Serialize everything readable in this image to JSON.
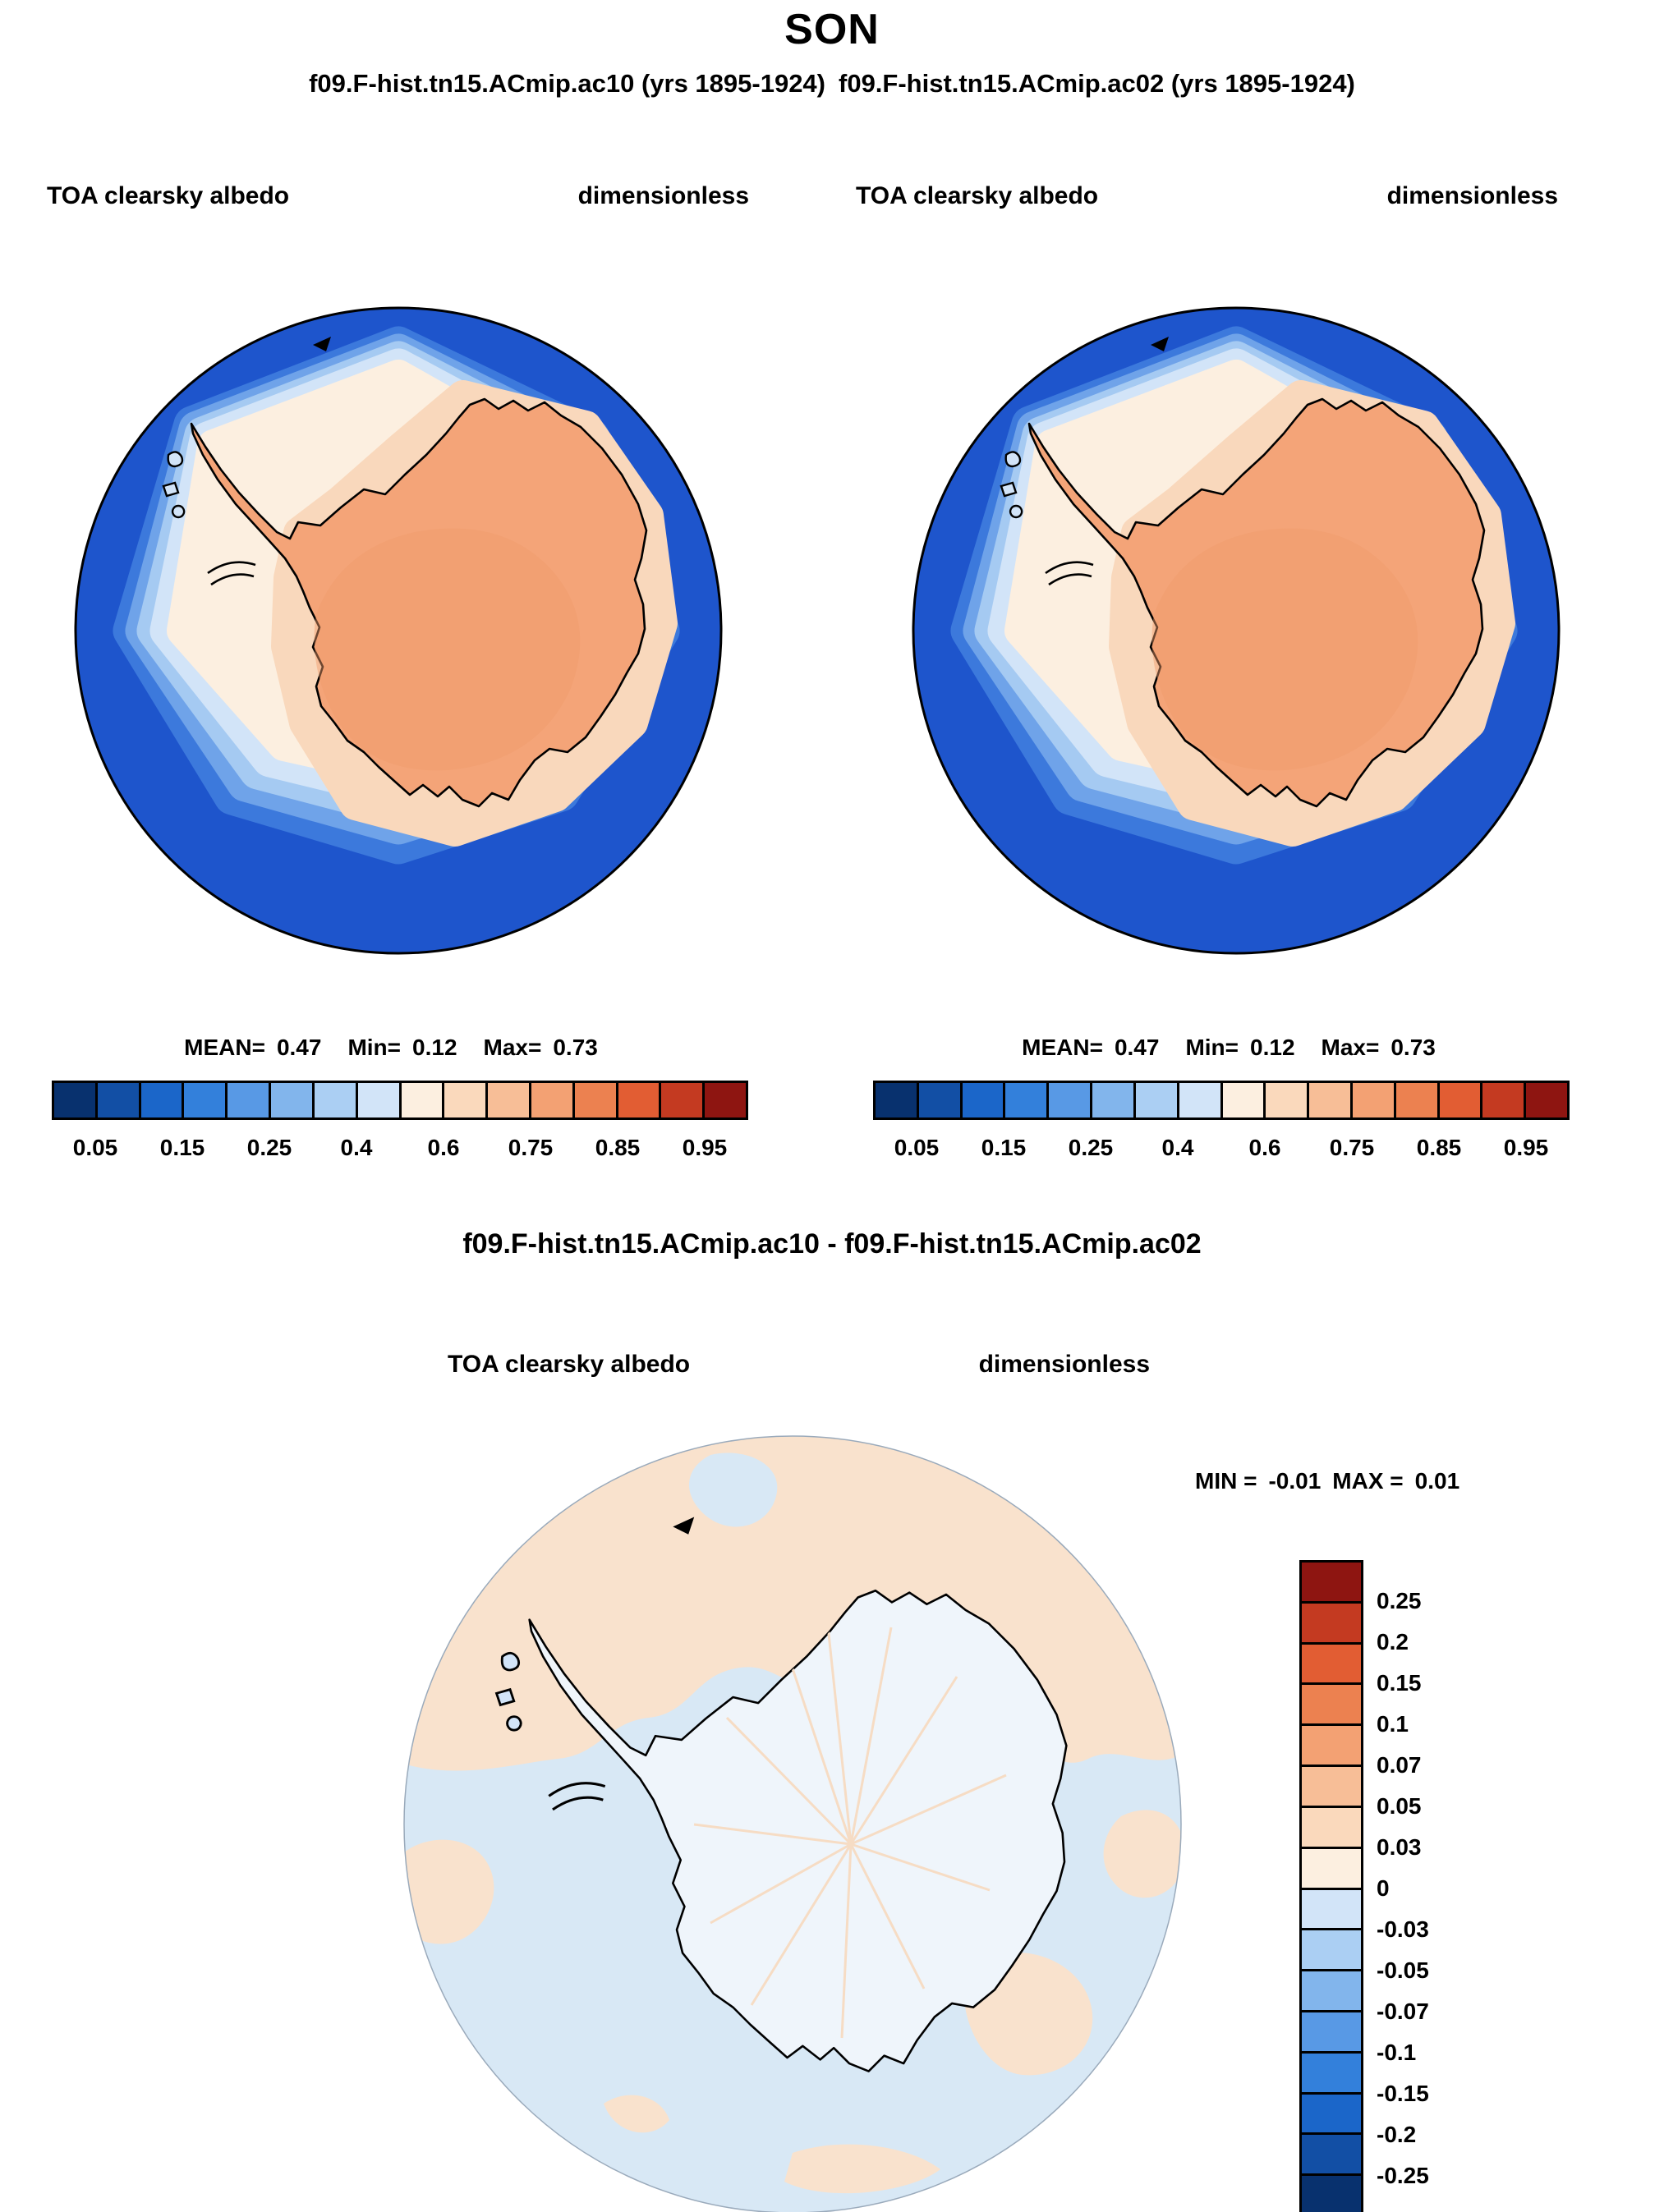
{
  "title": "SON",
  "panels": {
    "left": {
      "run_title": "f09.F-hist.tn15.ACmip.ac10 (yrs 1895-1924)",
      "field": "TOA clearsky albedo",
      "units": "dimensionless",
      "mean_label": "MEAN=",
      "mean": "0.47",
      "min_label": "Min=",
      "min": "0.12",
      "max_label": "Max=",
      "max": "0.73"
    },
    "right": {
      "run_title": "f09.F-hist.tn15.ACmip.ac02 (yrs 1895-1924)",
      "field": "TOA clearsky albedo",
      "units": "dimensionless",
      "mean_label": "MEAN=",
      "mean": "0.47",
      "min_label": "Min=",
      "min": "0.12",
      "max_label": "Max=",
      "max": "0.73"
    }
  },
  "colorbar": {
    "ticks": [
      "0.05",
      "0.15",
      "0.25",
      "0.4",
      "0.6",
      "0.75",
      "0.85",
      "0.95"
    ],
    "colors": [
      "#08316E",
      "#124FA5",
      "#1B66C9",
      "#3380DB",
      "#5899E5",
      "#82B5EC",
      "#ABCFF3",
      "#D2E4F8",
      "#FCEFE0",
      "#FAD9BC",
      "#F7BE97",
      "#F3A173",
      "#EC8150",
      "#E25D33",
      "#C43A21",
      "#8E1511"
    ]
  },
  "diff": {
    "title": "f09.F-hist.tn15.ACmip.ac10 - f09.F-hist.tn15.ACmip.ac02",
    "field": "TOA clearsky albedo",
    "units": "dimensionless",
    "min_label": "MIN =",
    "min": "-0.01",
    "max_label": "MAX =",
    "max": "0.01",
    "colorbar": {
      "ticks": [
        "0.25",
        "0.2",
        "0.15",
        "0.1",
        "0.07",
        "0.05",
        "0.03",
        "0",
        "-0.03",
        "-0.05",
        "-0.07",
        "-0.1",
        "-0.15",
        "-0.2",
        "-0.25"
      ],
      "colors": [
        "#8E1511",
        "#C43A21",
        "#E25D33",
        "#EC8150",
        "#F3A173",
        "#F7BE97",
        "#FAD9BC",
        "#FCEFE0",
        "#D2E4F8",
        "#ABCFF3",
        "#82B5EC",
        "#5899E5",
        "#3380DB",
        "#1B66C9",
        "#124FA5",
        "#08316E"
      ]
    }
  },
  "palette": {
    "ocean_deep_blue": "#1E55CC",
    "ocean_mid_blue": "#3C79DC",
    "ocean_light_blue": "#6FA3E9",
    "ocean_pale_blue": "#A5CAF2",
    "ocean_palest_blue": "#D2E4F8",
    "seaice_cream": "#FCEFE0",
    "seaice_peach": "#F9D8BC",
    "continent_orange": "#F4A478",
    "diff_pale_blue": "#D8E8F5",
    "diff_pale_peach": "#F9E2CD"
  },
  "chart_data": [
    {
      "type": "contour-map",
      "projection": "south-polar-stereographic",
      "title": "f09.F-hist.tn15.ACmip.ac10 (yrs 1895-1924)",
      "variable": "TOA clearsky albedo",
      "units": "dimensionless",
      "season": "SON",
      "stats": {
        "mean": 0.47,
        "min": 0.12,
        "max": 0.73
      },
      "levels": [
        0.05,
        0.1,
        0.15,
        0.2,
        0.25,
        0.3,
        0.4,
        0.5,
        0.6,
        0.7,
        0.75,
        0.8,
        0.85,
        0.9,
        0.95
      ],
      "labeled_levels": [
        0.05,
        0.15,
        0.25,
        0.4,
        0.6,
        0.75,
        0.85,
        0.95
      ],
      "description": "Low albedo (0.05-0.15, deep blue) over the Southern Ocean ring; 0.15-0.4 light blue bands at the sea-ice edge; 0.4-0.6 cream over sea ice; 0.6-0.75 orange-peach over the Antarctic continent."
    },
    {
      "type": "contour-map",
      "projection": "south-polar-stereographic",
      "title": "f09.F-hist.tn15.ACmip.ac02 (yrs 1895-1924)",
      "variable": "TOA clearsky albedo",
      "units": "dimensionless",
      "season": "SON",
      "stats": {
        "mean": 0.47,
        "min": 0.12,
        "max": 0.73
      },
      "levels": [
        0.05,
        0.1,
        0.15,
        0.2,
        0.25,
        0.3,
        0.4,
        0.5,
        0.6,
        0.7,
        0.75,
        0.8,
        0.85,
        0.9,
        0.95
      ],
      "labeled_levels": [
        0.05,
        0.15,
        0.25,
        0.4,
        0.6,
        0.75,
        0.85,
        0.95
      ],
      "description": "Visually identical to ac10 panel: deep blue ocean ring, cream sea-ice region, orange-peach continent."
    },
    {
      "type": "contour-map",
      "projection": "south-polar-stereographic",
      "title": "f09.F-hist.tn15.ACmip.ac10 - f09.F-hist.tn15.ACmip.ac02",
      "variable": "TOA clearsky albedo difference",
      "units": "dimensionless",
      "stats": {
        "min": -0.01,
        "max": 0.01
      },
      "levels": [
        -0.25,
        -0.2,
        -0.15,
        -0.1,
        -0.07,
        -0.05,
        -0.03,
        0,
        0.03,
        0.05,
        0.07,
        0.1,
        0.15,
        0.2,
        0.25
      ],
      "description": "Differences lie within +/-0.01: pale blue (0 to -0.03) over most of the domain with pale peach (0 to 0.03) patches near the map edge and faint radial peach streaks over the continent."
    }
  ]
}
